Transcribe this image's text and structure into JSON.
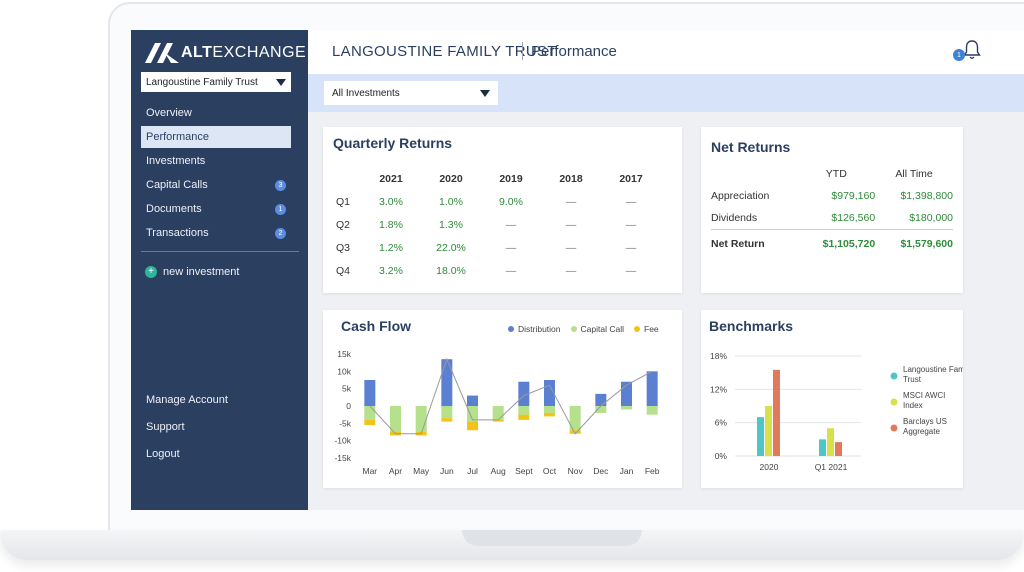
{
  "brand": {
    "alt": "ALT",
    "exchange": "EXCHANGE"
  },
  "sidebar": {
    "trust_select": "Langoustine Family Trust",
    "items": [
      {
        "label": "Overview",
        "badge": null
      },
      {
        "label": "Performance",
        "badge": null,
        "active": true
      },
      {
        "label": "Investments",
        "badge": null
      },
      {
        "label": "Capital Calls",
        "badge": "3"
      },
      {
        "label": "Documents",
        "badge": "1"
      },
      {
        "label": "Transactions",
        "badge": "2"
      }
    ],
    "new_investment": "new investment",
    "bottom": [
      "Manage Account",
      "Support",
      "Logout"
    ]
  },
  "header": {
    "title": "LANGOUSTINE FAMILY TRUST",
    "page": "Performance",
    "notification_count": "1"
  },
  "filter": {
    "value": "All Investments"
  },
  "quarterly_returns": {
    "title": "Quarterly Returns",
    "columns": [
      "2021",
      "2020",
      "2019",
      "2018",
      "2017"
    ],
    "rows": [
      {
        "label": "Q1",
        "values": [
          "3.0%",
          "1.0%",
          "9.0%",
          "—",
          "—"
        ]
      },
      {
        "label": "Q2",
        "values": [
          "1.8%",
          "1.3%",
          "—",
          "—",
          "—"
        ]
      },
      {
        "label": "Q3",
        "values": [
          "1.2%",
          "22.0%",
          "—",
          "—",
          "—"
        ]
      },
      {
        "label": "Q4",
        "values": [
          "3.2%",
          "18.0%",
          "—",
          "—",
          "—"
        ]
      }
    ]
  },
  "net_returns": {
    "title": "Net Returns",
    "columns": [
      "YTD",
      "All Time"
    ],
    "rows": [
      {
        "label": "Appreciation",
        "values": [
          "$979,160",
          "$1,398,800"
        ]
      },
      {
        "label": "Dividends",
        "values": [
          "$126,560",
          "$180,000"
        ]
      }
    ],
    "total": {
      "label": "Net Return",
      "values": [
        "$1,105,720",
        "$1,579,600"
      ]
    }
  },
  "colors": {
    "distribution": "#5b7fd1",
    "capital_call": "#b5e08c",
    "fee": "#f0c419",
    "line": "#999999",
    "bm1": "#4ec6c6",
    "bm2": "#d8e04a",
    "bm3": "#e07a5a"
  },
  "chart_data": [
    {
      "type": "bar",
      "title": "Cash Flow",
      "categories": [
        "Mar",
        "Apr",
        "May",
        "Jun",
        "Jul",
        "Aug",
        "Sept",
        "Oct",
        "Nov",
        "Dec",
        "Jan",
        "Feb"
      ],
      "series": [
        {
          "name": "Distribution",
          "values": [
            7500,
            0,
            0,
            13500,
            3000,
            0,
            7000,
            7500,
            0,
            3500,
            7000,
            10000
          ]
        },
        {
          "name": "Capital Call",
          "values": [
            -4000,
            -7500,
            -7500,
            -3500,
            -4500,
            -4000,
            -2500,
            -2000,
            -7000,
            -2000,
            -1000,
            -2500
          ]
        },
        {
          "name": "Fee",
          "values": [
            -1500,
            -1000,
            -1000,
            -1000,
            -2500,
            -500,
            -1500,
            -1000,
            -1000,
            0,
            0,
            0
          ]
        }
      ],
      "line_values": [
        0,
        -8000,
        -8000,
        13500,
        -4000,
        -4000,
        3000,
        6000,
        -8000,
        0,
        6000,
        10000
      ],
      "yticks": [
        "15k",
        "10k",
        "5k",
        "0",
        "-5k",
        "-10k",
        "-15k"
      ],
      "ylim": [
        -15000,
        15000
      ],
      "legend": "top-right"
    },
    {
      "type": "bar",
      "title": "Benchmarks",
      "categories": [
        "2020",
        "Q1 2021"
      ],
      "series": [
        {
          "name": "Langoustine Family Trust",
          "values": [
            7,
            3
          ]
        },
        {
          "name": "MSCI AWCI Index",
          "values": [
            9,
            5
          ]
        },
        {
          "name": "Barclays US Aggregate",
          "values": [
            15.5,
            2.5
          ]
        }
      ],
      "yticks": [
        "18%",
        "12%",
        "6%",
        "0%"
      ],
      "ylim": [
        0,
        18
      ],
      "legend": "right"
    }
  ]
}
